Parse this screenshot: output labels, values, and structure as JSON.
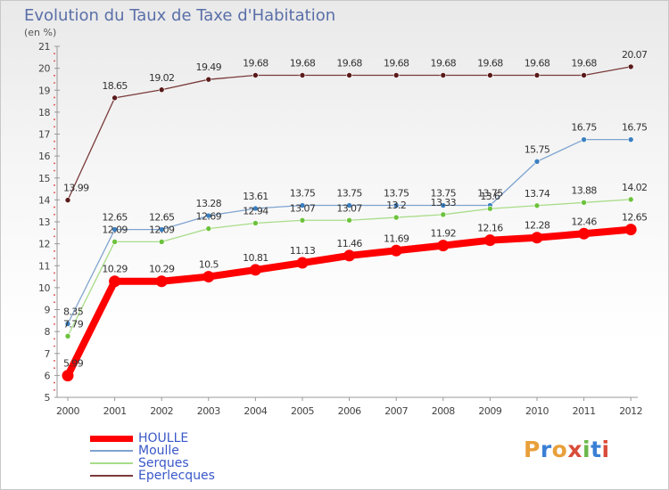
{
  "title": "Evolution du Taux de Taxe d'Habitation",
  "unit_label": "(en %)",
  "logo_text": "Proxiti",
  "logo_colors": [
    "#e8a03a",
    "#3a7fd5",
    "#e8a03a",
    "#d94c3a",
    "#6ab84a",
    "#3a7fd5",
    "#d94c3a"
  ],
  "chart_data": {
    "type": "line",
    "title": "Evolution du Taux de Taxe d'Habitation",
    "ylabel": "(en %)",
    "xlabel": "",
    "x": [
      "2000",
      "2001",
      "2002",
      "2003",
      "2004",
      "2005",
      "2006",
      "2007",
      "2008",
      "2009",
      "2010",
      "2011",
      "2012"
    ],
    "ylim": [
      5,
      21
    ],
    "yticks": [
      5,
      6,
      7,
      8,
      9,
      10,
      11,
      12,
      13,
      14,
      15,
      16,
      17,
      18,
      19,
      20,
      21
    ],
    "grid": false,
    "legend_position": "bottom-left",
    "series": [
      {
        "name": "Eperlecques",
        "color": "#7a3a3a",
        "marker_color": "#5a1a1a",
        "values": [
          13.99,
          18.65,
          19.02,
          19.49,
          19.68,
          19.68,
          19.68,
          19.68,
          19.68,
          19.68,
          19.68,
          19.68,
          20.07
        ],
        "labels": [
          "13.99",
          "18.65",
          "19.02",
          "19.49",
          "19.68",
          "19.68",
          "19.68",
          "19.68",
          "19.68",
          "19.68",
          "19.68",
          "19.68",
          "20.07"
        ]
      },
      {
        "name": "Moulle",
        "color": "#7ea3cf",
        "marker_color": "#3a7fc0",
        "values": [
          8.35,
          12.65,
          12.65,
          13.28,
          13.61,
          13.75,
          13.75,
          13.75,
          13.75,
          13.75,
          15.75,
          16.75,
          16.75
        ],
        "labels": [
          "8.35",
          "12.65",
          "12.65",
          "13.28",
          "13.61",
          "13.75",
          "13.75",
          "13.75",
          "13.75",
          "13.75",
          "15.75",
          "16.75",
          "16.75"
        ]
      },
      {
        "name": "Serques",
        "color": "#a8dc88",
        "marker_color": "#6cc23c",
        "values": [
          7.79,
          12.09,
          12.09,
          12.69,
          12.94,
          13.07,
          13.07,
          13.2,
          13.33,
          13.6,
          13.74,
          13.88,
          14.02
        ],
        "labels": [
          "7.79",
          "12.09",
          "12.09",
          "12.69",
          "12.94",
          "13.07",
          "13.07",
          "13.2",
          "13.33",
          "13.6",
          "13.74",
          "13.88",
          "14.02"
        ]
      },
      {
        "name": "HOULLE",
        "color": "#ff0000",
        "marker_color": "#ff0000",
        "values": [
          5.99,
          10.29,
          10.29,
          10.5,
          10.81,
          11.13,
          11.46,
          11.69,
          11.92,
          12.16,
          12.28,
          12.46,
          12.65
        ],
        "labels": [
          "5.99",
          "10.29",
          "10.29",
          "10.5",
          "10.81",
          "11.13",
          "11.46",
          "11.69",
          "11.92",
          "12.16",
          "12.28",
          "12.46",
          "12.65"
        ]
      }
    ],
    "legend_order": [
      "HOULLE",
      "Moulle",
      "Serques",
      "Eperlecques"
    ]
  }
}
